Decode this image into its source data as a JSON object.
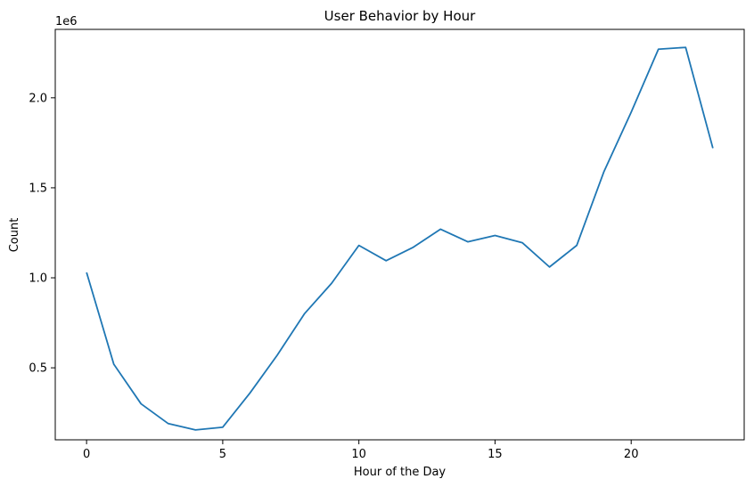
{
  "chart_data": {
    "type": "line",
    "title": "User Behavior by Hour",
    "xlabel": "Hour of the Day",
    "ylabel": "Count",
    "y_offset_label": "1e6",
    "xlim": [
      -1.15,
      24.15
    ],
    "ylim": [
      100000,
      2380000
    ],
    "x_ticks": [
      0,
      5,
      10,
      15,
      20
    ],
    "x_tick_labels": [
      "0",
      "5",
      "10",
      "15",
      "20"
    ],
    "y_ticks": [
      500000,
      1000000,
      1500000,
      2000000
    ],
    "y_tick_labels": [
      "0.5",
      "1.0",
      "1.5",
      "2.0"
    ],
    "grid": false,
    "line_color": "#1f77b4",
    "series": [
      {
        "x": [
          0,
          1,
          2,
          3,
          4,
          5,
          6,
          7,
          8,
          9,
          10,
          11,
          12,
          13,
          14,
          15,
          16,
          17,
          18,
          19,
          20,
          21,
          22,
          23
        ],
        "values": [
          1030000,
          520000,
          300000,
          190000,
          155000,
          170000,
          360000,
          570000,
          800000,
          970000,
          1180000,
          1095000,
          1170000,
          1270000,
          1200000,
          1235000,
          1195000,
          1060000,
          1180000,
          1590000,
          1920000,
          2270000,
          2280000,
          1720000
        ]
      }
    ]
  }
}
